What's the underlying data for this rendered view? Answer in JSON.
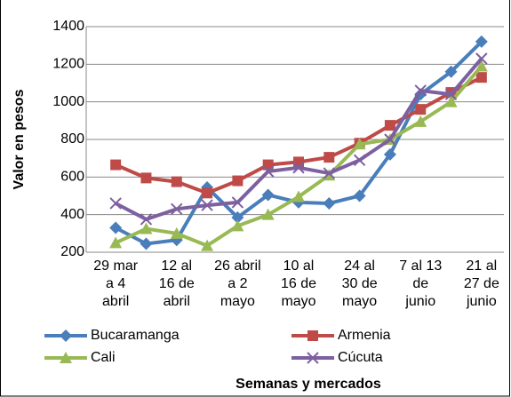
{
  "chart_data": {
    "type": "line",
    "x_label": "Semanas y mercados",
    "y_label": "Valor en pesos",
    "categories": [
      "29 mar\na 4\nabril",
      null,
      "12 al\n16 de\nabril",
      null,
      "26 abril\na 2\nmayo",
      null,
      "10 al\n16 de\nmayo",
      null,
      "24 al\n30 de\nmayo",
      null,
      "7 al 13\nde\njunio",
      null,
      "21 al\n27 de\njunio"
    ],
    "series": [
      {
        "name": "Bucaramanga",
        "color": "#4a7ebb",
        "marker": "diamond",
        "values": [
          330,
          245,
          265,
          545,
          385,
          505,
          465,
          460,
          500,
          720,
          1040,
          1160,
          1320
        ]
      },
      {
        "name": "Armenia",
        "color": "#be4b48",
        "marker": "square",
        "values": [
          665,
          595,
          575,
          515,
          580,
          665,
          680,
          705,
          780,
          875,
          960,
          1050,
          1130
        ]
      },
      {
        "name": "Cali",
        "color": "#98b954",
        "marker": "triangle",
        "values": [
          250,
          325,
          300,
          235,
          340,
          400,
          495,
          610,
          775,
          800,
          895,
          1000,
          1190
        ]
      },
      {
        "name": "Cúcuta",
        "color": "#7d60a0",
        "marker": "x",
        "values": [
          460,
          375,
          430,
          450,
          465,
          630,
          650,
          620,
          690,
          800,
          1060,
          1040,
          1230
        ]
      }
    ],
    "ylim": [
      200,
      1400
    ],
    "yticks": [
      200,
      400,
      600,
      800,
      1000,
      1200,
      1400
    ],
    "grid": true
  }
}
